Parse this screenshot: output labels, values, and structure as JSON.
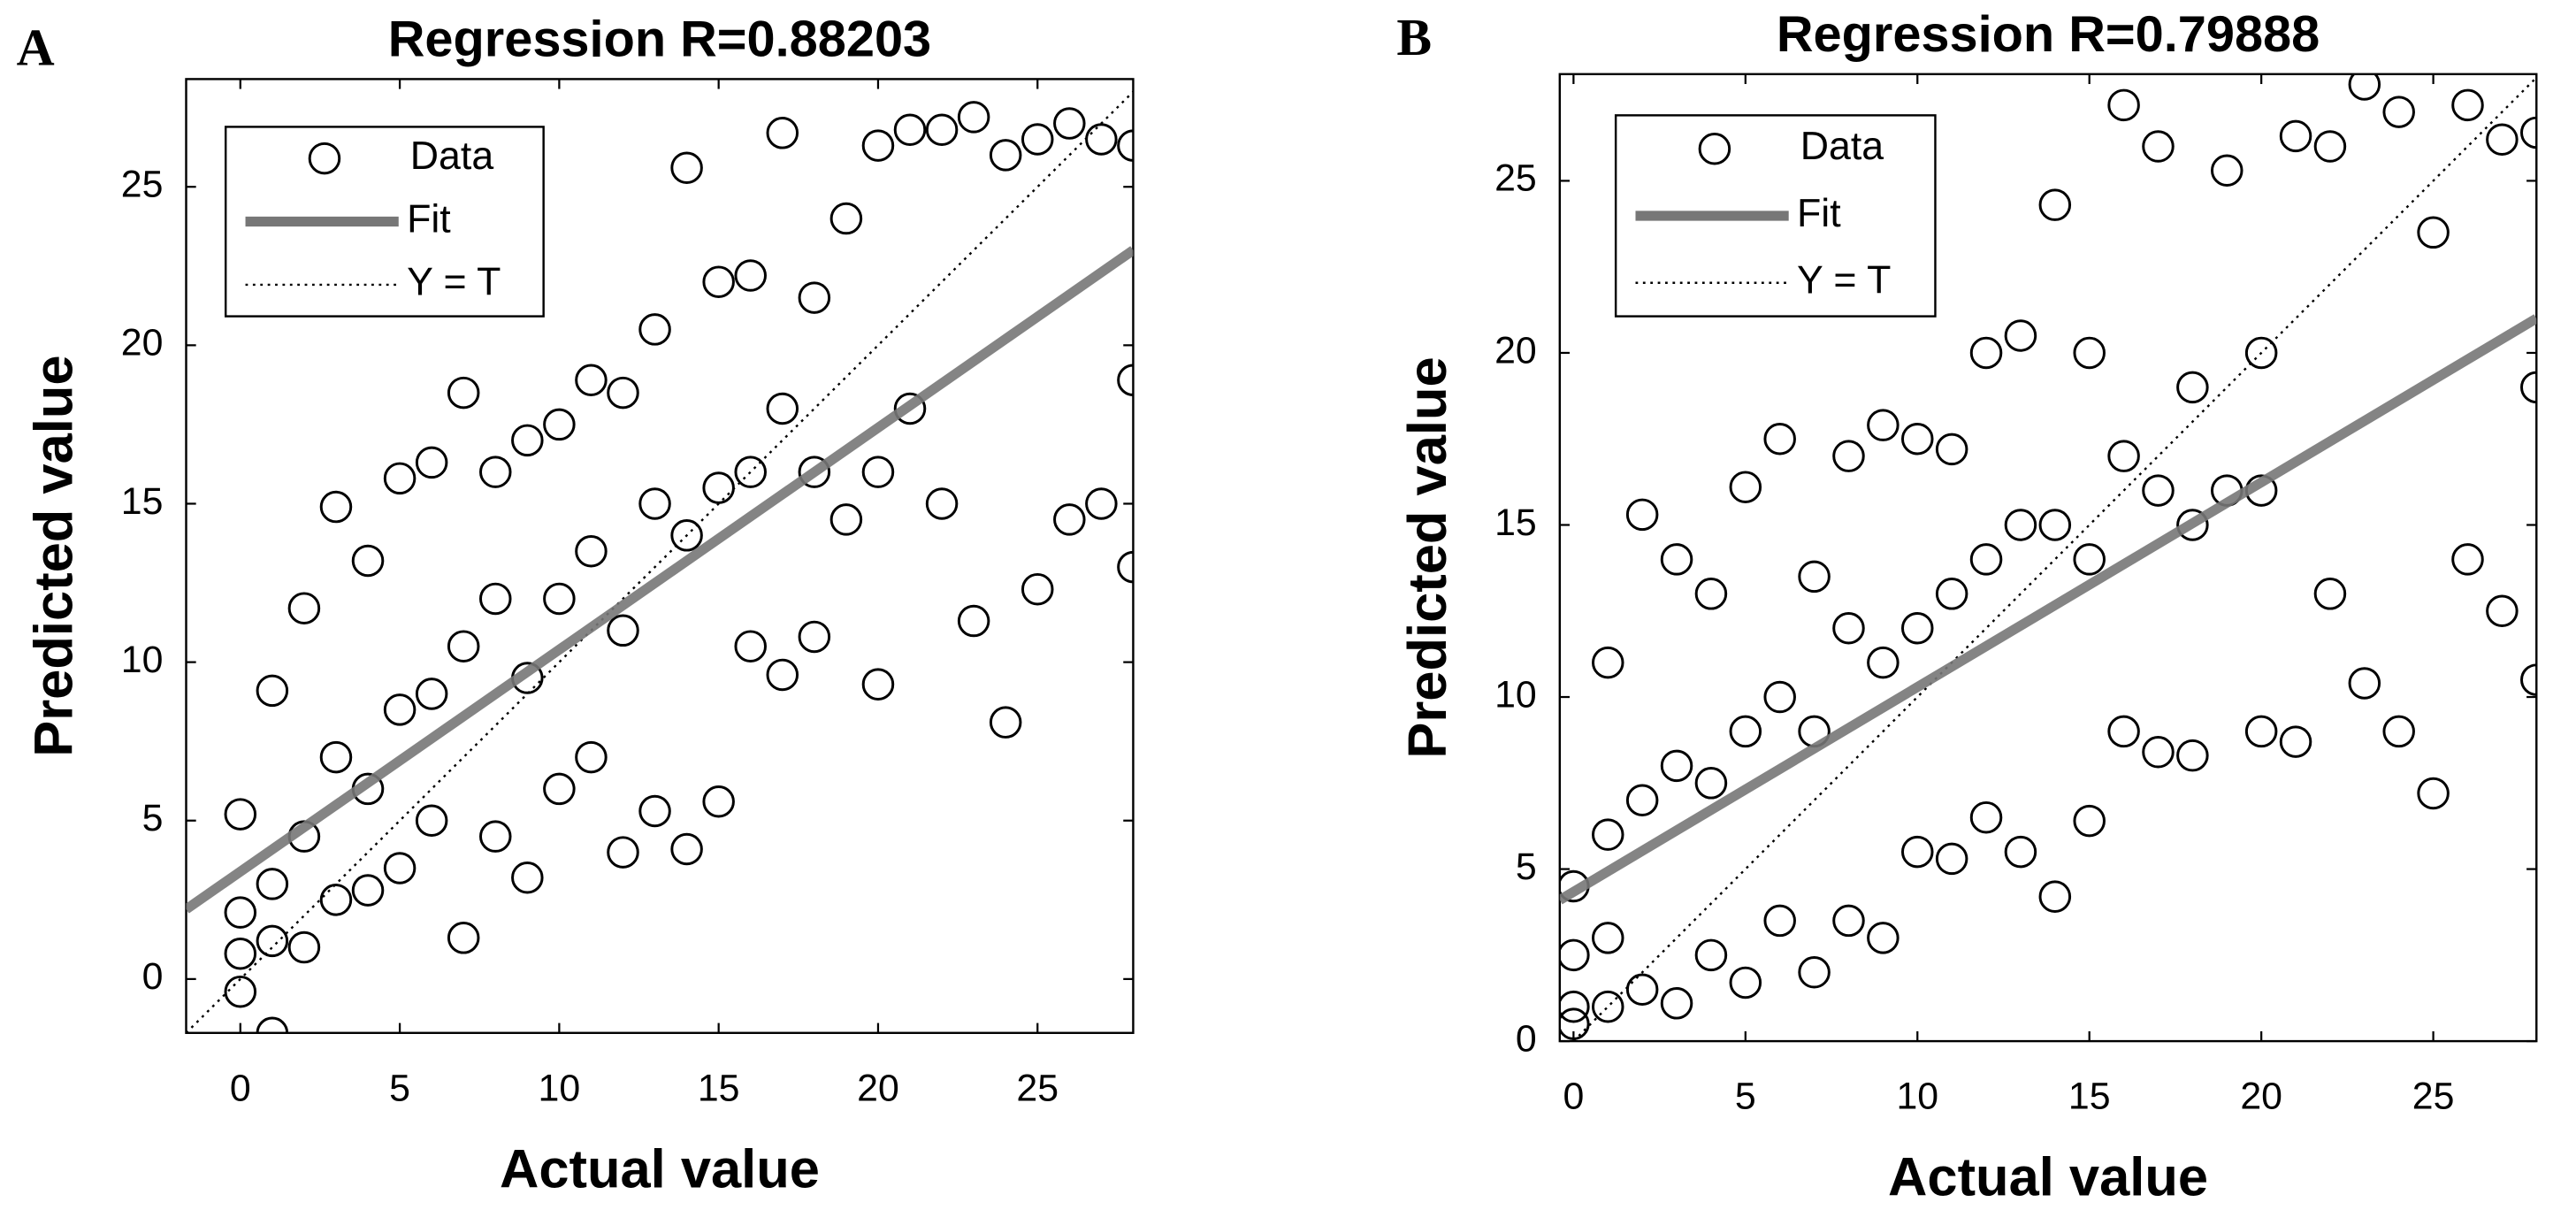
{
  "chart_data": [
    {
      "type": "scatter",
      "panel": "A",
      "title": "Regression R=0.88203",
      "xlabel": "Actual value",
      "ylabel": "Predicted value",
      "xlim": [
        -1.7,
        28
      ],
      "ylim": [
        -1.7,
        28.4
      ],
      "xticks": [
        0,
        5,
        10,
        15,
        20,
        25
      ],
      "yticks": [
        0,
        5,
        10,
        15,
        20,
        25
      ],
      "series": [
        {
          "name": "Data",
          "color": "#000000",
          "x": [
            0,
            0,
            0,
            0,
            1,
            1,
            1,
            1,
            2,
            2,
            2,
            3,
            3,
            3,
            4,
            4,
            4,
            5,
            5,
            5,
            6,
            6,
            6,
            7,
            7,
            7,
            8,
            8,
            8,
            9,
            9,
            9,
            10,
            10,
            10,
            11,
            11,
            11,
            12,
            12,
            12,
            13,
            13,
            13,
            14,
            14,
            14,
            15,
            15,
            15,
            16,
            16,
            16,
            17,
            17,
            17,
            18,
            18,
            18,
            19,
            19,
            20,
            20,
            20,
            21,
            21,
            22,
            22,
            23,
            23,
            24,
            24,
            25,
            25,
            26,
            26,
            27,
            27,
            28,
            28,
            28
          ],
          "values": [
            5.2,
            2.1,
            0.8,
            -0.4,
            9.1,
            3,
            1.2,
            -1.7,
            11.7,
            4.5,
            1,
            14.9,
            7,
            2.5,
            13.2,
            6,
            2.8,
            15.8,
            8.5,
            3.5,
            16.3,
            9,
            5,
            18.5,
            10.5,
            1.3,
            16,
            12,
            4.5,
            17,
            9.5,
            3.2,
            17.5,
            12,
            6,
            18.9,
            13.5,
            7,
            18.5,
            11,
            4,
            20.5,
            15,
            5.3,
            25.6,
            14,
            4.1,
            22,
            15.5,
            5.6,
            22.2,
            16,
            10.5,
            26.7,
            18,
            9.6,
            21.5,
            16,
            10.8,
            24,
            14.5,
            26.3,
            16,
            9.3,
            26.8,
            18,
            26.8,
            15,
            27.2,
            11.3,
            26,
            8.1,
            26.5,
            12.3,
            27,
            14.5,
            26.5,
            15,
            26.3,
            18.9,
            13
          ]
        }
      ],
      "fit": {
        "name": "Fit",
        "color": "#777777",
        "x": [
          -1.7,
          28
        ],
        "y": [
          2.2,
          23
        ]
      },
      "identity_label": "Y = T"
    },
    {
      "type": "scatter",
      "panel": "B",
      "title": "Regression R=0.79888",
      "xlabel": "Actual value",
      "ylabel": "Predicted value",
      "xlim": [
        -0.4,
        28
      ],
      "ylim": [
        0,
        28.1
      ],
      "xticks": [
        0,
        5,
        10,
        15,
        20,
        25
      ],
      "yticks": [
        0,
        5,
        10,
        15,
        20,
        25
      ],
      "series": [
        {
          "name": "Data",
          "color": "#000000",
          "x": [
            0,
            0,
            0,
            0,
            1,
            1,
            1,
            1,
            2,
            2,
            2,
            3,
            3,
            3,
            4,
            4,
            4,
            5,
            5,
            5,
            6,
            6,
            6,
            7,
            7,
            7,
            8,
            8,
            8,
            9,
            9,
            9,
            10,
            10,
            10,
            11,
            11,
            11,
            12,
            12,
            12,
            13,
            13,
            13,
            14,
            14,
            14,
            15,
            15,
            15,
            16,
            16,
            16,
            17,
            17,
            17,
            18,
            18,
            18,
            19,
            19,
            20,
            20,
            20,
            21,
            21,
            22,
            22,
            23,
            23,
            24,
            24,
            25,
            25,
            26,
            26,
            27,
            27,
            28,
            28,
            28
          ],
          "values": [
            4.5,
            2.5,
            1,
            0.5,
            11,
            6,
            3,
            1,
            15.3,
            7,
            1.5,
            14,
            8,
            1.1,
            13,
            7.5,
            2.5,
            16.1,
            9,
            1.7,
            17.5,
            10,
            3.5,
            13.5,
            9,
            2,
            17,
            12,
            3.5,
            17.9,
            11,
            3,
            17.5,
            12,
            5.5,
            17.2,
            13,
            5.3,
            20,
            14,
            6.5,
            20.5,
            15,
            5.5,
            24.3,
            15,
            4.2,
            20,
            14,
            6.4,
            27.2,
            17,
            9,
            26,
            16,
            8.4,
            19,
            15,
            8.3,
            25.3,
            16,
            20,
            16,
            9,
            26.3,
            8.7,
            26,
            13,
            27.8,
            10.4,
            27,
            9,
            23.5,
            7.2,
            27.2,
            14,
            26.2,
            12.5,
            26.4,
            19,
            10.5
          ]
        }
      ],
      "fit": {
        "name": "Fit",
        "color": "#777777",
        "x": [
          -0.4,
          28
        ],
        "y": [
          4.1,
          21
        ]
      },
      "identity_label": "Y = T"
    }
  ]
}
